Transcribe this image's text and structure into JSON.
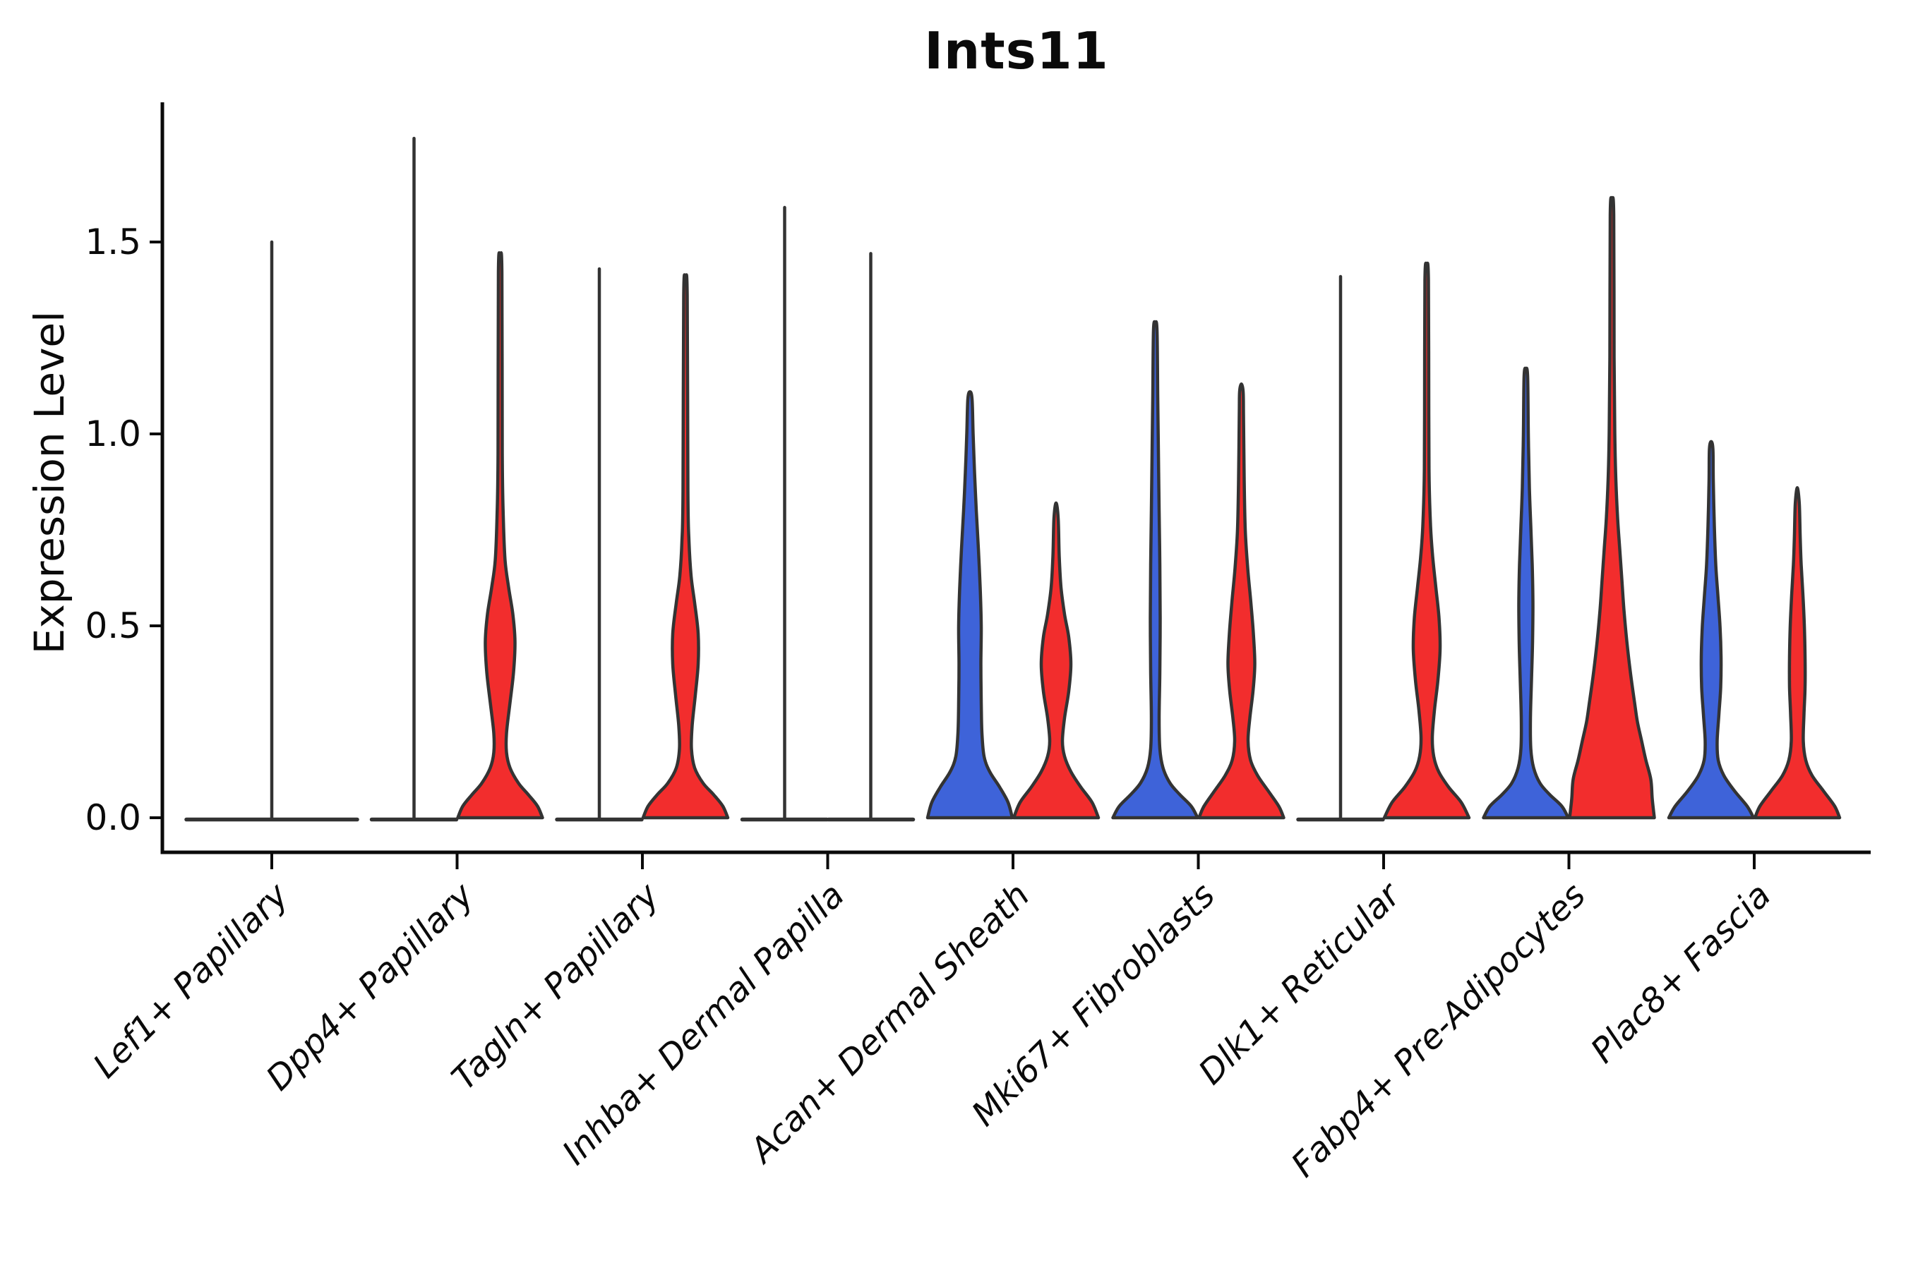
{
  "title": "Ints11",
  "axes": {
    "y_label": "Expression Level",
    "y_tick_labels": [
      "0.0",
      "0.5",
      "1.0",
      "1.5"
    ],
    "y_tick_values": [
      0.0,
      0.5,
      1.0,
      1.5
    ],
    "x_categories": [
      "Lef1+ Papillary",
      "Dpp4+ Papillary",
      "Tagln+ Papillary",
      "Inhba+ Dermal Papilla",
      "Acan+ Dermal Sheath",
      "Mki67+ Fibroblasts",
      "Dlk1+ Reticular",
      "Fabp4+ Pre-Adipocytes",
      "Plac8+ Fascia"
    ]
  },
  "colors": {
    "blue_fill": "#3E63D9",
    "red_fill": "#F22D2D",
    "violin_edge": "#333333",
    "axis": "#0a0a0a",
    "text": "#0a0a0a",
    "background": "#ffffff"
  },
  "chart_data": {
    "type": "violin",
    "title": "Ints11",
    "xlabel": "",
    "ylabel": "Expression Level",
    "ylim": [
      -0.09,
      1.86
    ],
    "y_ticks": [
      0.0,
      0.5,
      1.0,
      1.5
    ],
    "grid": false,
    "legend": "none",
    "split_groups": [
      "blue",
      "red"
    ],
    "categories": [
      "Lef1+ Papillary",
      "Dpp4+ Papillary",
      "Tagln+ Papillary",
      "Inhba+ Dermal Papilla",
      "Acan+ Dermal Sheath",
      "Mki67+ Fibroblasts",
      "Dlk1+ Reticular",
      "Fabp4+ Pre-Adipocytes",
      "Plac8+ Fascia"
    ],
    "violins": [
      {
        "category_index": 0,
        "category": "Lef1+ Papillary",
        "side": "center",
        "color": "none",
        "collapsed": true,
        "half_width": 121,
        "max_value": 1.5
      },
      {
        "category_index": 1,
        "category": "Dpp4+ Papillary",
        "side": "left",
        "color": "blue",
        "collapsed": true,
        "half_width": 60,
        "max_value": 1.77
      },
      {
        "category_index": 1,
        "category": "Dpp4+ Papillary",
        "side": "right",
        "color": "red",
        "collapsed": false,
        "max_value": 1.46,
        "profile": [
          [
            0,
            60
          ],
          [
            0.03,
            53
          ],
          [
            0.06,
            40
          ],
          [
            0.09,
            26
          ],
          [
            0.13,
            14
          ],
          [
            0.17,
            9
          ],
          [
            0.22,
            9
          ],
          [
            0.3,
            14
          ],
          [
            0.38,
            19
          ],
          [
            0.46,
            21
          ],
          [
            0.53,
            18
          ],
          [
            0.6,
            12
          ],
          [
            0.67,
            7
          ],
          [
            0.78,
            4.5
          ],
          [
            0.95,
            3
          ],
          [
            1.42,
            2.5
          ],
          [
            1.46,
            0
          ]
        ]
      },
      {
        "category_index": 2,
        "category": "Tagln+ Papillary",
        "side": "left",
        "color": "blue",
        "collapsed": true,
        "half_width": 60,
        "max_value": 1.43
      },
      {
        "category_index": 2,
        "category": "Tagln+ Papillary",
        "side": "right",
        "color": "red",
        "collapsed": false,
        "max_value": 1.4,
        "profile": [
          [
            0,
            60
          ],
          [
            0.03,
            53
          ],
          [
            0.06,
            40
          ],
          [
            0.09,
            25
          ],
          [
            0.13,
            13
          ],
          [
            0.18,
            8.5
          ],
          [
            0.24,
            9.5
          ],
          [
            0.32,
            14
          ],
          [
            0.4,
            18
          ],
          [
            0.48,
            18
          ],
          [
            0.56,
            13
          ],
          [
            0.63,
            8
          ],
          [
            0.72,
            5
          ],
          [
            0.85,
            3.5
          ],
          [
            1.36,
            2.5
          ],
          [
            1.4,
            0
          ]
        ]
      },
      {
        "category_index": 3,
        "category": "Inhba+ Dermal Papilla",
        "side": "left",
        "color": "blue",
        "collapsed": true,
        "half_width": 60,
        "max_value": 1.59
      },
      {
        "category_index": 3,
        "category": "Inhba+ Dermal Papilla",
        "side": "right",
        "color": "red",
        "collapsed": true,
        "half_width": 60,
        "max_value": 1.47
      },
      {
        "category_index": 4,
        "category": "Acan+ Dermal Sheath",
        "side": "left",
        "color": "blue",
        "collapsed": false,
        "max_value": 1.11,
        "profile": [
          [
            0,
            60
          ],
          [
            0.04,
            54
          ],
          [
            0.08,
            42
          ],
          [
            0.12,
            28
          ],
          [
            0.16,
            20
          ],
          [
            0.22,
            17
          ],
          [
            0.3,
            16
          ],
          [
            0.4,
            15.5
          ],
          [
            0.5,
            16
          ],
          [
            0.6,
            14.5
          ],
          [
            0.7,
            12
          ],
          [
            0.8,
            9
          ],
          [
            0.9,
            6.5
          ],
          [
            1.0,
            4.5
          ],
          [
            1.09,
            3
          ],
          [
            1.11,
            0
          ]
        ]
      },
      {
        "category_index": 4,
        "category": "Acan+ Dermal Sheath",
        "side": "right",
        "color": "red",
        "collapsed": false,
        "max_value": 0.82,
        "profile": [
          [
            0,
            60
          ],
          [
            0.04,
            51
          ],
          [
            0.08,
            35
          ],
          [
            0.12,
            21
          ],
          [
            0.16,
            12
          ],
          [
            0.2,
            9
          ],
          [
            0.26,
            12
          ],
          [
            0.33,
            18
          ],
          [
            0.4,
            21
          ],
          [
            0.47,
            18
          ],
          [
            0.53,
            12
          ],
          [
            0.6,
            7
          ],
          [
            0.68,
            4.5
          ],
          [
            0.78,
            3
          ],
          [
            0.82,
            0
          ]
        ]
      },
      {
        "category_index": 5,
        "category": "Mki67+ Fibroblasts",
        "side": "left",
        "color": "blue",
        "collapsed": false,
        "max_value": 1.29,
        "profile": [
          [
            0,
            60
          ],
          [
            0.03,
            51
          ],
          [
            0.06,
            35
          ],
          [
            0.09,
            21
          ],
          [
            0.13,
            11
          ],
          [
            0.18,
            6.5
          ],
          [
            0.26,
            5.5
          ],
          [
            0.38,
            6.5
          ],
          [
            0.52,
            7
          ],
          [
            0.66,
            6.5
          ],
          [
            0.8,
            5.5
          ],
          [
            0.95,
            4.5
          ],
          [
            1.1,
            3.5
          ],
          [
            1.27,
            2.5
          ],
          [
            1.29,
            0
          ]
        ]
      },
      {
        "category_index": 5,
        "category": "Mki67+ Fibroblasts",
        "side": "right",
        "color": "red",
        "collapsed": false,
        "max_value": 1.13,
        "profile": [
          [
            0,
            60
          ],
          [
            0.03,
            53
          ],
          [
            0.07,
            38
          ],
          [
            0.11,
            23
          ],
          [
            0.15,
            13
          ],
          [
            0.2,
            9.5
          ],
          [
            0.26,
            12
          ],
          [
            0.33,
            16.5
          ],
          [
            0.4,
            19
          ],
          [
            0.48,
            17
          ],
          [
            0.56,
            13.5
          ],
          [
            0.65,
            9
          ],
          [
            0.75,
            5.5
          ],
          [
            0.88,
            4
          ],
          [
            1.05,
            3
          ],
          [
            1.11,
            2.5
          ],
          [
            1.13,
            0
          ]
        ]
      },
      {
        "category_index": 6,
        "category": "Dlk1+ Reticular",
        "side": "left",
        "color": "blue",
        "collapsed": true,
        "half_width": 60,
        "max_value": 1.41
      },
      {
        "category_index": 6,
        "category": "Dlk1+ Reticular",
        "side": "right",
        "color": "red",
        "collapsed": false,
        "max_value": 1.44,
        "profile": [
          [
            0,
            60
          ],
          [
            0.04,
            49
          ],
          [
            0.08,
            31
          ],
          [
            0.12,
            17
          ],
          [
            0.16,
            10
          ],
          [
            0.21,
            8
          ],
          [
            0.28,
            11
          ],
          [
            0.36,
            16
          ],
          [
            0.44,
            19
          ],
          [
            0.52,
            17.5
          ],
          [
            0.6,
            13
          ],
          [
            0.68,
            8.5
          ],
          [
            0.76,
            5.5
          ],
          [
            0.88,
            3.5
          ],
          [
            1.05,
            3
          ],
          [
            1.4,
            2.5
          ],
          [
            1.44,
            0
          ]
        ]
      },
      {
        "category_index": 7,
        "category": "Fabp4+ Pre-Adipocytes",
        "side": "left",
        "color": "blue",
        "collapsed": false,
        "max_value": 1.17,
        "profile": [
          [
            0,
            60
          ],
          [
            0.03,
            51
          ],
          [
            0.06,
            34
          ],
          [
            0.09,
            20
          ],
          [
            0.13,
            11
          ],
          [
            0.18,
            7
          ],
          [
            0.26,
            6.5
          ],
          [
            0.36,
            8
          ],
          [
            0.46,
            9.5
          ],
          [
            0.56,
            10
          ],
          [
            0.66,
            9
          ],
          [
            0.76,
            7
          ],
          [
            0.86,
            5
          ],
          [
            1.0,
            3.5
          ],
          [
            1.15,
            2.5
          ],
          [
            1.17,
            0
          ]
        ]
      },
      {
        "category_index": 7,
        "category": "Fabp4+ Pre-Adipocytes",
        "side": "right",
        "color": "red",
        "collapsed": false,
        "max_value": 1.61,
        "profile": [
          [
            0,
            60
          ],
          [
            0.05,
            57
          ],
          [
            0.1,
            55
          ],
          [
            0.15,
            48
          ],
          [
            0.2,
            42
          ],
          [
            0.25,
            36
          ],
          [
            0.3,
            32
          ],
          [
            0.38,
            26
          ],
          [
            0.46,
            21
          ],
          [
            0.54,
            17
          ],
          [
            0.62,
            14
          ],
          [
            0.7,
            11
          ],
          [
            0.78,
            8
          ],
          [
            0.88,
            5.5
          ],
          [
            1.0,
            4
          ],
          [
            1.2,
            3
          ],
          [
            1.57,
            2.5
          ],
          [
            1.61,
            0
          ]
        ]
      },
      {
        "category_index": 8,
        "category": "Plac8+ Fascia",
        "side": "left",
        "color": "blue",
        "collapsed": false,
        "max_value": 0.98,
        "profile": [
          [
            0,
            60
          ],
          [
            0.03,
            51
          ],
          [
            0.07,
            33
          ],
          [
            0.11,
            18
          ],
          [
            0.15,
            10
          ],
          [
            0.2,
            8.5
          ],
          [
            0.27,
            11
          ],
          [
            0.34,
            13.5
          ],
          [
            0.42,
            14
          ],
          [
            0.5,
            12.5
          ],
          [
            0.58,
            9.5
          ],
          [
            0.66,
            6.5
          ],
          [
            0.76,
            4.5
          ],
          [
            0.88,
            3
          ],
          [
            0.96,
            2.5
          ],
          [
            0.98,
            0
          ]
        ]
      },
      {
        "category_index": 8,
        "category": "Plac8+ Fascia",
        "side": "right",
        "color": "red",
        "collapsed": false,
        "max_value": 0.86,
        "profile": [
          [
            0,
            60
          ],
          [
            0.03,
            53
          ],
          [
            0.07,
            37
          ],
          [
            0.11,
            21
          ],
          [
            0.15,
            12
          ],
          [
            0.2,
            8.5
          ],
          [
            0.27,
            9.5
          ],
          [
            0.34,
            11
          ],
          [
            0.42,
            11
          ],
          [
            0.5,
            10
          ],
          [
            0.58,
            8
          ],
          [
            0.66,
            5.5
          ],
          [
            0.74,
            4
          ],
          [
            0.82,
            2.8
          ],
          [
            0.86,
            0
          ]
        ]
      }
    ]
  }
}
